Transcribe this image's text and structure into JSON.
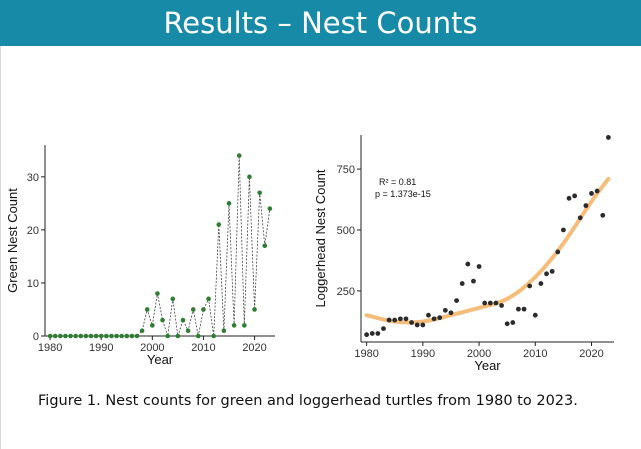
{
  "header": {
    "title": "Results – Nest Counts",
    "color": "#168aa7"
  },
  "caption": "Figure 1. Nest counts for green and loggerhead turtles from 1980 to 2023.",
  "chart_data": [
    {
      "type": "line",
      "title": "",
      "xlabel": "Year",
      "ylabel": "Green Nest Count",
      "xlim": [
        1979,
        2024
      ],
      "ylim": [
        0,
        36
      ],
      "xticks": [
        1980,
        1990,
        2000,
        2010,
        2020
      ],
      "yticks": [
        0,
        10,
        20,
        30
      ],
      "tick_labels_x": [
        "1980",
        "1990",
        "2000",
        "2010",
        "2020"
      ],
      "tick_labels_y": [
        "0",
        "10",
        "20",
        "30"
      ],
      "point_color": "#2e7d32",
      "line_color": "#444444",
      "series": [
        {
          "name": "Green",
          "x": [
            1980,
            1981,
            1982,
            1983,
            1984,
            1985,
            1986,
            1987,
            1988,
            1989,
            1990,
            1991,
            1992,
            1993,
            1994,
            1995,
            1996,
            1997,
            1998,
            1999,
            2000,
            2001,
            2002,
            2003,
            2004,
            2005,
            2006,
            2007,
            2008,
            2009,
            2010,
            2011,
            2012,
            2013,
            2014,
            2015,
            2016,
            2017,
            2018,
            2019,
            2020,
            2021,
            2022,
            2023
          ],
          "values": [
            0,
            0,
            0,
            0,
            0,
            0,
            0,
            0,
            0,
            0,
            0,
            0,
            0,
            0,
            0,
            0,
            0,
            0,
            1,
            5,
            2,
            8,
            3,
            0,
            7,
            0,
            3,
            1,
            5,
            0,
            5,
            7,
            0,
            21,
            1,
            25,
            2,
            34,
            2,
            30,
            5,
            27,
            17,
            24
          ]
        }
      ]
    },
    {
      "type": "scatter",
      "title": "",
      "xlabel": "Year",
      "ylabel": "Loggerhead Nest Count",
      "xlim": [
        1979,
        2024
      ],
      "ylim": [
        40,
        890
      ],
      "xticks": [
        1980,
        1990,
        2000,
        2010,
        2020
      ],
      "yticks": [
        250,
        500,
        750
      ],
      "tick_labels_x": [
        "1980",
        "1990",
        "2000",
        "2010",
        "2020"
      ],
      "tick_labels_y": [
        "250",
        "500",
        "750"
      ],
      "annotation": {
        "r2_label": "R² = 0.81",
        "p_label": "p = 1.373e-15"
      },
      "point_color": "#2b2b2b",
      "trend_color": "#f5b66b",
      "trend": {
        "x": [
          1980,
          1985,
          1990,
          1995,
          2000,
          2005,
          2010,
          2015,
          2020,
          2023
        ],
        "values": [
          150,
          120,
          120,
          150,
          180,
          210,
          300,
          440,
          620,
          710
        ]
      },
      "series": [
        {
          "name": "Loggerhead",
          "x": [
            1980,
            1981,
            1982,
            1983,
            1984,
            1985,
            1986,
            1987,
            1988,
            1989,
            1990,
            1991,
            1992,
            1993,
            1994,
            1995,
            1996,
            1997,
            1998,
            1999,
            2000,
            2001,
            2002,
            2003,
            2004,
            2005,
            2006,
            2007,
            2008,
            2009,
            2010,
            2011,
            2012,
            2013,
            2014,
            2015,
            2016,
            2017,
            2018,
            2019,
            2020,
            2021,
            2022,
            2023
          ],
          "values": [
            70,
            75,
            75,
            95,
            130,
            130,
            135,
            135,
            120,
            110,
            110,
            150,
            135,
            140,
            170,
            160,
            210,
            280,
            360,
            290,
            350,
            200,
            200,
            200,
            190,
            115,
            120,
            175,
            175,
            270,
            150,
            280,
            320,
            330,
            410,
            500,
            630,
            640,
            550,
            600,
            650,
            660,
            560,
            880
          ]
        }
      ]
    }
  ]
}
